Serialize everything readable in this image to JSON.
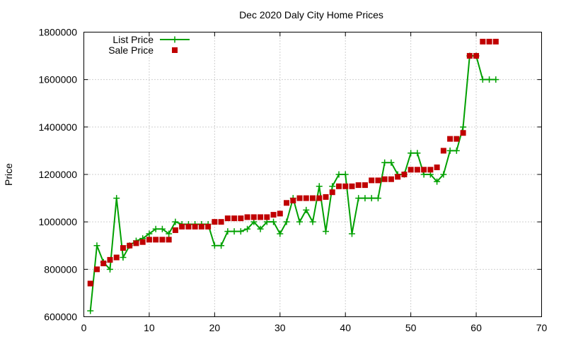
{
  "chart_data": {
    "type": "line",
    "title": "Dec 2020 Daly City Home Prices",
    "xlabel": "",
    "ylabel": "Price",
    "xlim": [
      0,
      70
    ],
    "ylim": [
      600000,
      1800000
    ],
    "xticks": [
      "0",
      "10",
      "20",
      "30",
      "40",
      "50",
      "60",
      "70"
    ],
    "yticks": [
      "600000",
      "800000",
      "1000000",
      "1200000",
      "1400000",
      "1600000",
      "1800000"
    ],
    "grid": true,
    "legend_position": "top-left",
    "series": [
      {
        "name": "List Price",
        "style": "line-with-plus-markers",
        "color": "#00a000",
        "x": [
          1,
          2,
          3,
          4,
          5,
          6,
          7,
          8,
          9,
          10,
          11,
          12,
          13,
          14,
          15,
          16,
          17,
          18,
          19,
          20,
          21,
          22,
          23,
          24,
          25,
          26,
          27,
          28,
          29,
          30,
          31,
          32,
          33,
          34,
          35,
          36,
          37,
          38,
          39,
          40,
          41,
          42,
          43,
          44,
          45,
          46,
          47,
          48,
          49,
          50,
          51,
          52,
          53,
          54,
          55,
          56,
          57,
          58,
          59,
          60,
          61,
          62,
          63
        ],
        "y": [
          625000,
          900000,
          830000,
          800000,
          1100000,
          850000,
          900000,
          920000,
          930000,
          950000,
          970000,
          970000,
          950000,
          1000000,
          990000,
          990000,
          990000,
          990000,
          990000,
          900000,
          900000,
          960000,
          960000,
          960000,
          970000,
          1000000,
          970000,
          1000000,
          1000000,
          950000,
          1000000,
          1100000,
          1000000,
          1050000,
          1000000,
          1150000,
          960000,
          1150000,
          1200000,
          1200000,
          950000,
          1100000,
          1100000,
          1100000,
          1100000,
          1250000,
          1250000,
          1200000,
          1200000,
          1290000,
          1290000,
          1200000,
          1200000,
          1170000,
          1200000,
          1300000,
          1300000,
          1400000,
          1700000,
          1700000,
          1600000,
          1600000,
          1600000
        ]
      },
      {
        "name": "Sale Price",
        "style": "square-markers",
        "color": "#c00000",
        "x": [
          1,
          2,
          3,
          4,
          5,
          6,
          7,
          8,
          9,
          10,
          11,
          12,
          13,
          14,
          15,
          16,
          17,
          18,
          19,
          20,
          21,
          22,
          23,
          24,
          25,
          26,
          27,
          28,
          29,
          30,
          31,
          32,
          33,
          34,
          35,
          36,
          37,
          38,
          39,
          40,
          41,
          42,
          43,
          44,
          45,
          46,
          47,
          48,
          49,
          50,
          51,
          52,
          53,
          54,
          55,
          56,
          57,
          58,
          59,
          60,
          61,
          62,
          63
        ],
        "y": [
          740000,
          800000,
          825000,
          840000,
          850000,
          890000,
          900000,
          910000,
          915000,
          925000,
          925000,
          925000,
          925000,
          965000,
          980000,
          980000,
          980000,
          980000,
          980000,
          1000000,
          1000000,
          1015000,
          1015000,
          1015000,
          1020000,
          1020000,
          1020000,
          1020000,
          1030000,
          1035000,
          1080000,
          1090000,
          1100000,
          1100000,
          1100000,
          1100000,
          1105000,
          1125000,
          1150000,
          1150000,
          1150000,
          1155000,
          1155000,
          1175000,
          1175000,
          1180000,
          1180000,
          1190000,
          1200000,
          1220000,
          1220000,
          1220000,
          1220000,
          1230000,
          1300000,
          1350000,
          1350000,
          1375000,
          1700000,
          1700000,
          1760000,
          1760000,
          1760000
        ]
      }
    ]
  }
}
